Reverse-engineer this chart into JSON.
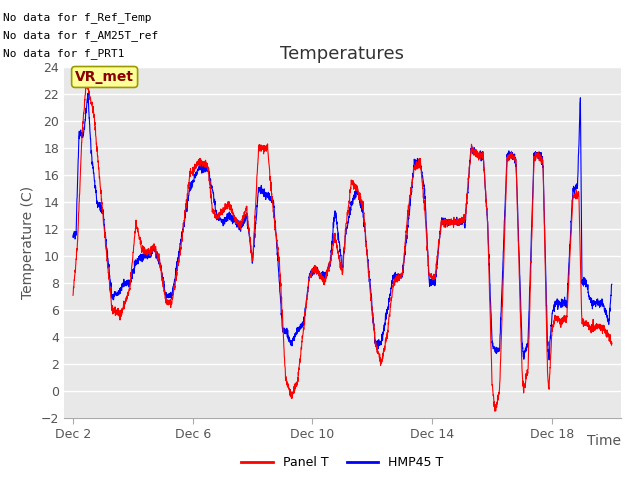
{
  "title": "Temperatures",
  "xlabel": "Time",
  "ylabel": "Temperature (C)",
  "ylim": [
    -2,
    24
  ],
  "yticks": [
    -2,
    0,
    2,
    4,
    6,
    8,
    10,
    12,
    14,
    16,
    18,
    20,
    22,
    24
  ],
  "xtick_positions": [
    2,
    6,
    10,
    14,
    18
  ],
  "xtick_labels": [
    "Dec 2",
    "Dec 6",
    "Dec 10",
    "Dec 14",
    "Dec 18"
  ],
  "no_data_lines": [
    "No data for f_Ref_Temp",
    "No data for f_AM25T_ref",
    "No data for f_PRT1"
  ],
  "vr_met_label": "VR_met",
  "legend_entries": [
    "Panel T",
    "HMP45 T"
  ],
  "panel_t_color": "#FF0000",
  "hmp45_t_color": "#0000FF",
  "plot_bg_color": "#E8E8E8",
  "grid_color": "#FFFFFF",
  "title_color": "#333333",
  "axis_label_color": "#555555",
  "tick_color": "#555555",
  "title_fontsize": 13,
  "axis_fontsize": 10,
  "tick_fontsize": 9,
  "nodata_fontsize": 8,
  "seed": 42
}
